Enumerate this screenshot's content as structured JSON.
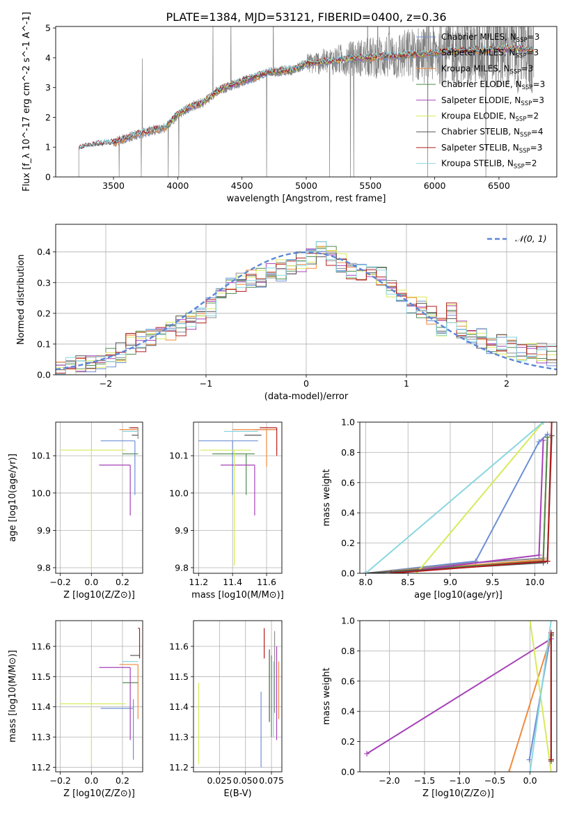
{
  "figure_title": "PLATE=1384, MJD=53121, FIBERID=0400, z=0.36",
  "colors": {
    "chabrier_miles": "#6d8fd6",
    "salpeter_miles": "#8c8c8c",
    "kroupa_miles": "#f08a3c",
    "chabrier_elodie": "#4e8a4e",
    "salpeter_elodie": "#a640b8",
    "kroupa_elodie": "#d7ea5a",
    "chabrier_stelib": "#555555",
    "salpeter_stelib": "#b21b1b",
    "kroupa_stelib": "#8ad6e0"
  },
  "legend": {
    "spectrum": [
      "Chabrier MILES, N_SSP=3",
      "Salpeter MILES, N_SSP=3",
      "Kroupa MILES, N_SSP=3",
      "Chabrier ELODIE, N_SSP=3",
      "Salpeter ELODIE, N_SSP=3",
      "Kroupa ELODIE, N_SSP=2",
      "Chabrier STELIB, N_SSP=4",
      "Salpeter STELIB, N_SSP=3",
      "Kroupa STELIB, N_SSP=2"
    ],
    "histogram": "𝒩(0, 1)"
  },
  "chart_data": [
    {
      "type": "line",
      "id": "spectrum",
      "xlabel": "wavelength [Angstrom, rest frame]",
      "ylabel": "Flux [f_λ 10^-17 erg cm^-2 s^-1 A^-1]",
      "xlim": [
        3050,
        6950
      ],
      "ylim": [
        0,
        5.05
      ],
      "xticks": [
        3500,
        4000,
        4500,
        5000,
        5500,
        6000,
        6500
      ],
      "yticks": [
        0,
        1,
        2,
        3,
        4,
        5
      ],
      "continuum_points": {
        "x": [
          3230,
          3300,
          3400,
          3500,
          3600,
          3700,
          3800,
          3900,
          4000,
          4100,
          4200,
          4300,
          4400,
          4500,
          4600,
          4700,
          4800,
          4900,
          5000,
          5100,
          5200,
          5300,
          5400,
          5500,
          5600,
          5700,
          5800,
          5900,
          6000,
          6100,
          6200,
          6300,
          6400,
          6500,
          6600,
          6700,
          6770
        ],
        "y": [
          0.95,
          1.05,
          1.1,
          1.15,
          1.3,
          1.45,
          1.55,
          1.65,
          2.1,
          2.35,
          2.5,
          2.85,
          3.05,
          3.2,
          3.35,
          3.5,
          3.55,
          3.6,
          3.8,
          3.85,
          3.9,
          3.95,
          4.0,
          4.0,
          4.05,
          4.05,
          4.1,
          4.12,
          4.15,
          4.2,
          4.22,
          4.25,
          4.25,
          4.3,
          4.3,
          4.3,
          4.25
        ]
      },
      "series_names": [
        "Chabrier MILES",
        "Salpeter MILES",
        "Kroupa MILES",
        "Chabrier ELODIE",
        "Salpeter ELODIE",
        "Kroupa ELODIE",
        "Chabrier STELIB",
        "Salpeter STELIB",
        "Kroupa STELIB"
      ],
      "model_start_x": [
        3500,
        3500,
        3500,
        3900,
        3900,
        3900,
        3230,
        3230,
        3230
      ],
      "data_series": "observed spectrum (grey)"
    },
    {
      "type": "step",
      "id": "residual-histogram",
      "xlabel": "(data-model)/error",
      "ylabel": "Normed distribution",
      "xlim": [
        -2.5,
        2.5
      ],
      "ylim": [
        0,
        0.49
      ],
      "xticks": [
        -2,
        -1,
        0,
        1,
        2
      ],
      "yticks": [
        0.0,
        0.1,
        0.2,
        0.3,
        0.4
      ],
      "bin_edges": [
        -2.5,
        -2.4,
        -2.3,
        -2.2,
        -2.1,
        -2.0,
        -1.9,
        -1.8,
        -1.7,
        -1.6,
        -1.5,
        -1.4,
        -1.3,
        -1.2,
        -1.1,
        -1.0,
        -0.9,
        -0.8,
        -0.7,
        -0.6,
        -0.5,
        -0.4,
        -0.3,
        -0.2,
        -0.1,
        0.0,
        0.1,
        0.2,
        0.3,
        0.4,
        0.5,
        0.6,
        0.7,
        0.8,
        0.9,
        1.0,
        1.1,
        1.2,
        1.3,
        1.4,
        1.5,
        1.6,
        1.7,
        1.8,
        1.9,
        2.0,
        2.1,
        2.2,
        2.3,
        2.4,
        2.5
      ],
      "base_values": [
        0.02,
        0.025,
        0.03,
        0.04,
        0.045,
        0.055,
        0.07,
        0.1,
        0.11,
        0.12,
        0.13,
        0.14,
        0.16,
        0.18,
        0.2,
        0.22,
        0.26,
        0.29,
        0.3,
        0.31,
        0.32,
        0.33,
        0.34,
        0.35,
        0.37,
        0.38,
        0.4,
        0.39,
        0.36,
        0.34,
        0.33,
        0.33,
        0.32,
        0.28,
        0.26,
        0.23,
        0.22,
        0.19,
        0.16,
        0.2,
        0.14,
        0.11,
        0.12,
        0.1,
        0.1,
        0.09,
        0.08,
        0.075,
        0.07,
        0.06
      ],
      "normal_curve": {
        "mean": 0,
        "sigma": 1
      }
    },
    {
      "type": "errorbar",
      "id": "age-vs-Z",
      "xlabel": "Z [log10(Z/Z⊙)]",
      "ylabel": "age [log10(age/yr)]",
      "xlim": [
        -0.23,
        0.33
      ],
      "ylim": [
        9.785,
        10.19
      ],
      "xticks": [
        -0.2,
        0.0,
        0.2
      ],
      "yticks": [
        9.8,
        9.9,
        10.0,
        10.1
      ],
      "points": [
        {
          "series": "Chabrier MILES",
          "x": 0.28,
          "y": 10.14,
          "xerr": [
            0.22,
            0.0
          ],
          "yerr": [
            0.145,
            0.0
          ]
        },
        {
          "series": "Salpeter MILES",
          "x": 0.3,
          "y": 10.175,
          "xerr": [
            0.06,
            0.0
          ],
          "yerr": [
            0.03,
            0.0
          ]
        },
        {
          "series": "Kroupa MILES",
          "x": 0.3,
          "y": 10.17,
          "xerr": [
            0.12,
            0.0
          ],
          "yerr": [
            0.0,
            0.0
          ]
        },
        {
          "series": "Chabrier ELODIE",
          "x": 0.3,
          "y": 10.105,
          "xerr": [
            0.1,
            0.0
          ],
          "yerr": [
            0.0,
            0.0
          ]
        },
        {
          "series": "Salpeter ELODIE",
          "x": 0.25,
          "y": 10.075,
          "xerr": [
            0.2,
            0.0
          ],
          "yerr": [
            0.135,
            0.0
          ]
        },
        {
          "series": "Kroupa ELODIE",
          "x": 0.0,
          "y": 10.115,
          "xerr": [
            0.2,
            0.22
          ],
          "yerr": [
            0.32,
            0.0
          ]
        },
        {
          "series": "Chabrier STELIB",
          "x": 0.3,
          "y": 10.155,
          "xerr": [
            0.04,
            0.0
          ],
          "yerr": [
            0.0,
            0.0
          ]
        },
        {
          "series": "Salpeter STELIB",
          "x": 0.3,
          "y": 10.175,
          "xerr": [
            0.05,
            0.0
          ],
          "yerr": [
            0.0,
            0.0
          ]
        },
        {
          "series": "Kroupa STELIB",
          "x": 0.3,
          "y": 10.165,
          "xerr": [
            0.1,
            0.0
          ],
          "yerr": [
            0.0,
            0.0
          ]
        }
      ]
    },
    {
      "type": "errorbar",
      "id": "age-vs-mass",
      "xlabel": "mass [log10(M/M⊙)]",
      "ylabel": "",
      "xlim": [
        11.17,
        11.69
      ],
      "ylim": [
        9.785,
        10.19
      ],
      "xticks": [
        11.2,
        11.4,
        11.6
      ],
      "yticks": [
        9.8,
        9.9,
        10.0,
        10.1
      ],
      "points": [
        {
          "series": "Chabrier MILES",
          "x": 11.4,
          "y": 10.14,
          "xerr": [
            0.2,
            0.15
          ],
          "yerr": [
            0.145,
            0.0
          ]
        },
        {
          "series": "Salpeter MILES",
          "x": 11.63,
          "y": 10.17,
          "xerr": [
            0.1,
            0.03
          ],
          "yerr": [
            0.0,
            0.0
          ]
        },
        {
          "series": "Kroupa MILES",
          "x": 11.6,
          "y": 10.17,
          "xerr": [
            0.2,
            0.05
          ],
          "yerr": [
            0.1,
            0.0
          ]
        },
        {
          "series": "Chabrier ELODIE",
          "x": 11.48,
          "y": 10.105,
          "xerr": [
            0.2,
            0.05
          ],
          "yerr": [
            0.11,
            0.0
          ]
        },
        {
          "series": "Salpeter ELODIE",
          "x": 11.53,
          "y": 10.075,
          "xerr": [
            0.2,
            0.0
          ],
          "yerr": [
            0.135,
            0.0
          ]
        },
        {
          "series": "Kroupa ELODIE",
          "x": 11.41,
          "y": 10.115,
          "xerr": [
            0.2,
            0.1
          ],
          "yerr": [
            0.31,
            0.0
          ]
        },
        {
          "series": "Chabrier STELIB",
          "x": 11.57,
          "y": 10.155,
          "xerr": [
            0.1,
            0.0
          ],
          "yerr": [
            0.0,
            0.0
          ]
        },
        {
          "series": "Salpeter STELIB",
          "x": 11.66,
          "y": 10.175,
          "xerr": [
            0.1,
            0.0
          ],
          "yerr": [
            0.075,
            0.0
          ]
        },
        {
          "series": "Kroupa STELIB",
          "x": 11.55,
          "y": 10.165,
          "xerr": [
            0.2,
            0.0
          ],
          "yerr": [
            0.0,
            0.0
          ]
        }
      ]
    },
    {
      "type": "line",
      "id": "mass-weight-vs-age",
      "xlabel": "age [log10(age/yr)]",
      "ylabel": "mass weight",
      "xlim": [
        7.93,
        10.26
      ],
      "ylim": [
        0,
        1.0
      ],
      "xticks": [
        8.0,
        8.5,
        9.0,
        9.5,
        10.0
      ],
      "yticks": [
        0.0,
        0.2,
        0.4,
        0.6,
        0.8,
        1.0
      ],
      "series": [
        {
          "name": "Chabrier MILES",
          "x": [
            8.0,
            9.3,
            10.05,
            10.15
          ],
          "y": [
            0.0,
            0.08,
            0.87,
            0.92
          ]
        },
        {
          "name": "Salpeter MILES",
          "x": [
            8.0,
            9.3,
            10.1,
            10.15
          ],
          "y": [
            0.0,
            0.07,
            0.1,
            0.9
          ]
        },
        {
          "name": "Kroupa MILES",
          "x": [
            8.0,
            10.1,
            10.15
          ],
          "y": [
            0.0,
            0.09,
            0.9
          ]
        },
        {
          "name": "Chabrier ELODIE",
          "x": [
            8.0,
            10.1,
            10.15
          ],
          "y": [
            0.0,
            0.08,
            0.9
          ]
        },
        {
          "name": "Salpeter ELODIE",
          "x": [
            8.3,
            10.05,
            10.1
          ],
          "y": [
            0.0,
            0.12,
            0.88
          ]
        },
        {
          "name": "Kroupa ELODIE",
          "x": [
            8.6,
            10.1
          ],
          "y": [
            0.0,
            1.0
          ]
        },
        {
          "name": "Chabrier STELIB",
          "x": [
            8.0,
            10.1,
            10.15,
            10.2
          ],
          "y": [
            0.0,
            0.07,
            0.08,
            0.91
          ]
        },
        {
          "name": "Salpeter STELIB",
          "x": [
            8.3,
            10.15,
            10.2
          ],
          "y": [
            0.0,
            0.08,
            1.0
          ]
        },
        {
          "name": "Kroupa STELIB",
          "x": [
            8.0,
            10.1
          ],
          "y": [
            0.0,
            1.0
          ]
        }
      ]
    },
    {
      "type": "errorbar",
      "id": "mass-vs-Z",
      "xlabel": "Z [log10(Z/Z⊙)]",
      "ylabel": "mass [log10(M/M⊙)]",
      "xlim": [
        -0.23,
        0.33
      ],
      "ylim": [
        11.185,
        11.685
      ],
      "xticks": [
        -0.2,
        0.0,
        0.2
      ],
      "yticks": [
        11.2,
        11.3,
        11.4,
        11.5,
        11.6
      ],
      "points": [
        {
          "series": "Chabrier MILES",
          "x": 0.27,
          "y": 11.395,
          "xerr": [
            0.21,
            0.0
          ],
          "yerr": [
            0.17,
            0.03
          ]
        },
        {
          "series": "Salpeter MILES",
          "x": 0.3,
          "y": 11.65,
          "xerr": [
            0.0,
            0.0
          ],
          "yerr": [
            0.0,
            0.0
          ]
        },
        {
          "series": "Kroupa MILES",
          "x": 0.3,
          "y": 11.54,
          "xerr": [
            0.12,
            0.0
          ],
          "yerr": [
            0.18,
            0.0
          ]
        },
        {
          "series": "Chabrier ELODIE",
          "x": 0.3,
          "y": 11.48,
          "xerr": [
            0.1,
            0.0
          ],
          "yerr": [
            0.0,
            0.0
          ]
        },
        {
          "series": "Salpeter ELODIE",
          "x": 0.25,
          "y": 11.53,
          "xerr": [
            0.2,
            0.0
          ],
          "yerr": [
            0.24,
            0.0
          ]
        },
        {
          "series": "Kroupa ELODIE",
          "x": 0.0,
          "y": 11.41,
          "xerr": [
            0.2,
            0.22
          ],
          "yerr": [
            0.2,
            0.07
          ]
        },
        {
          "series": "Chabrier STELIB",
          "x": 0.31,
          "y": 11.57,
          "xerr": [
            0.06,
            0.0
          ],
          "yerr": [
            0.0,
            0.0
          ]
        },
        {
          "series": "Salpeter STELIB",
          "x": 0.31,
          "y": 11.66,
          "xerr": [
            0.01,
            0.0
          ],
          "yerr": [
            0.1,
            0.0
          ]
        },
        {
          "series": "Kroupa STELIB",
          "x": 0.3,
          "y": 11.55,
          "xerr": [
            0.1,
            0.0
          ],
          "yerr": [
            0.0,
            0.0
          ]
        }
      ]
    },
    {
      "type": "errorbar",
      "id": "mass-vs-ebv",
      "xlabel": "E(B-V)",
      "ylabel": "",
      "xlim": [
        0.0,
        0.085
      ],
      "ylim": [
        11.185,
        11.685
      ],
      "xticks": [
        0.025,
        0.05,
        0.075
      ],
      "xtick_labels": [
        "0.025",
        "0.050",
        "0.075"
      ],
      "yticks": [
        11.2,
        11.3,
        11.4,
        11.5,
        11.6
      ],
      "points": [
        {
          "series": "Chabrier MILES",
          "x": 0.065,
          "y": 11.35,
          "yerr": [
            0.15,
            0.1
          ]
        },
        {
          "series": "Salpeter MILES",
          "x": 0.078,
          "y": 11.58,
          "yerr": [
            0.2,
            0.07
          ]
        },
        {
          "series": "Kroupa MILES",
          "x": 0.082,
          "y": 11.46,
          "yerr": [
            0.1,
            0.09
          ]
        },
        {
          "series": "Chabrier ELODIE",
          "x": 0.075,
          "y": 11.5,
          "yerr": [
            0.2,
            0.07
          ]
        },
        {
          "series": "Salpeter ELODIE",
          "x": 0.08,
          "y": 11.45,
          "yerr": [
            0.16,
            0.15
          ]
        },
        {
          "series": "Kroupa ELODIE",
          "x": 0.005,
          "y": 11.35,
          "yerr": [
            0.14,
            0.13
          ]
        },
        {
          "series": "Chabrier STELIB",
          "x": 0.073,
          "y": 11.5,
          "yerr": [
            0.15,
            0.09
          ]
        },
        {
          "series": "Salpeter STELIB",
          "x": 0.068,
          "y": 11.61,
          "yerr": [
            0.05,
            0.05
          ]
        },
        {
          "series": "Kroupa STELIB",
          "x": 0.077,
          "y": 11.4,
          "yerr": [
            0.1,
            0.15
          ]
        }
      ]
    },
    {
      "type": "line",
      "id": "mass-weight-vs-Z",
      "xlabel": "Z [log10(Z/Z⊙)]",
      "ylabel": "mass weight",
      "xlim": [
        -2.42,
        0.38
      ],
      "ylim": [
        0,
        1.0
      ],
      "xticks": [
        -2.0,
        -1.5,
        -1.0,
        -0.5,
        0.0
      ],
      "yticks": [
        0.0,
        0.2,
        0.4,
        0.6,
        0.8,
        1.0
      ],
      "series": [
        {
          "name": "Chabrier MILES",
          "x": [
            -0.01,
            0.3
          ],
          "y": [
            0.08,
            0.92
          ]
        },
        {
          "name": "Salpeter MILES",
          "x": [
            0.3,
            0.3
          ],
          "y": [
            0.08,
            0.9
          ]
        },
        {
          "name": "Kroupa MILES",
          "x": [
            -0.3,
            0.3
          ],
          "y": [
            0.0,
            0.9
          ]
        },
        {
          "name": "Chabrier ELODIE",
          "x": [
            0.3,
            0.3
          ],
          "y": [
            0.08,
            0.9
          ]
        },
        {
          "name": "Salpeter ELODIE",
          "x": [
            -2.32,
            0.3
          ],
          "y": [
            0.12,
            0.88
          ]
        },
        {
          "name": "Kroupa ELODIE",
          "x": [
            0.0,
            0.3
          ],
          "y": [
            1.0,
            0.0
          ]
        },
        {
          "name": "Chabrier STELIB",
          "x": [
            0.3,
            0.3
          ],
          "y": [
            0.07,
            0.91
          ]
        },
        {
          "name": "Salpeter STELIB",
          "x": [
            0.3,
            0.3
          ],
          "y": [
            0.08,
            0.92
          ]
        },
        {
          "name": "Kroupa STELIB",
          "x": [
            0.0,
            0.3
          ],
          "y": [
            0.0,
            1.0
          ]
        }
      ]
    }
  ]
}
